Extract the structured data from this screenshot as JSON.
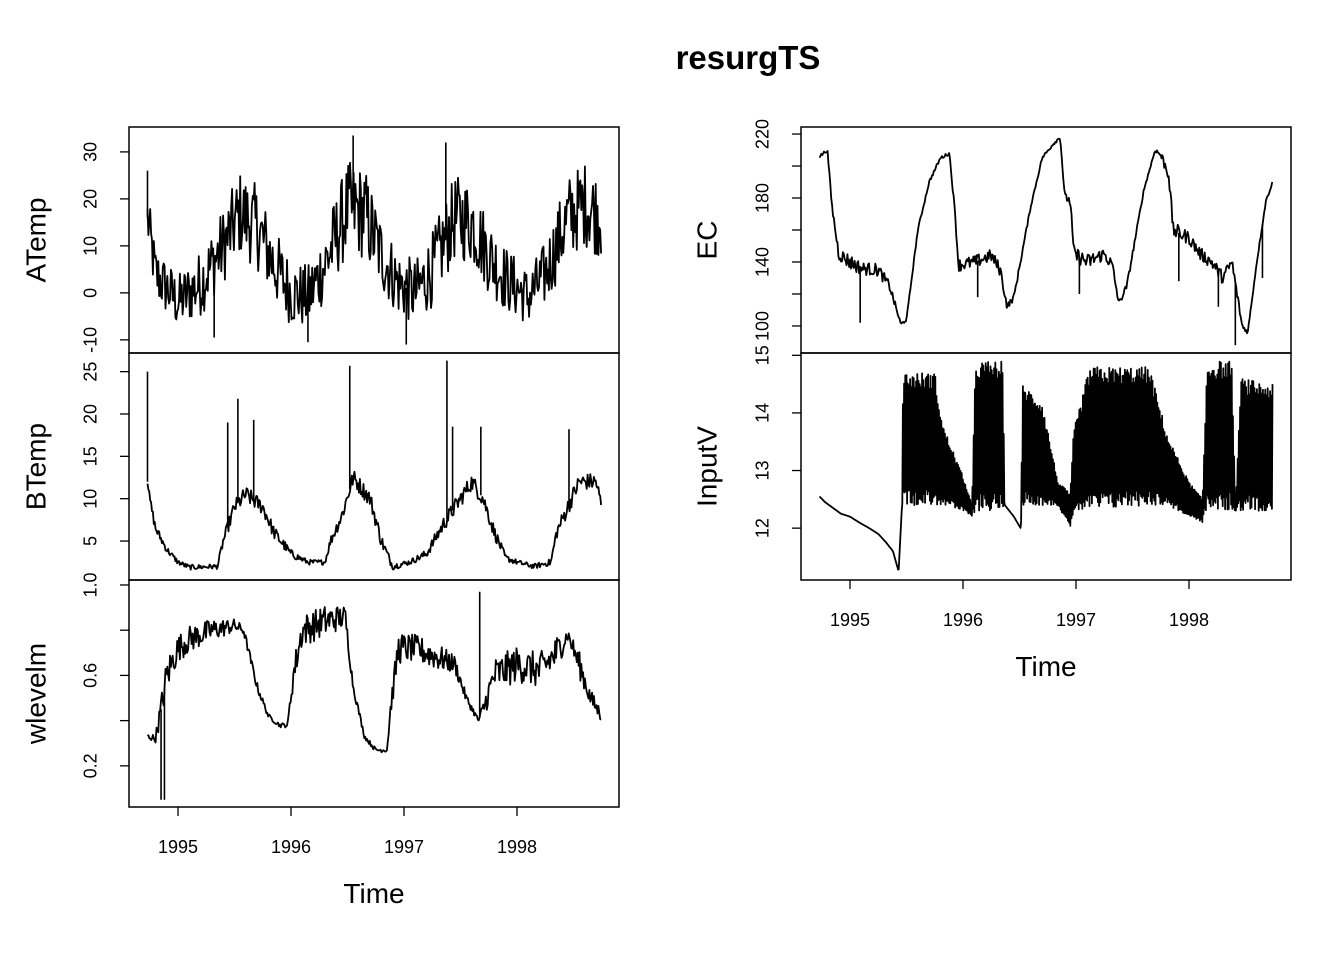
{
  "title": "resurgTS",
  "xaxis": {
    "label": "Time",
    "ticks": [
      1995,
      1996,
      1997,
      1998
    ],
    "xlim": [
      1994.57,
      1998.9
    ]
  },
  "chart_data": [
    {
      "type": "line",
      "ylabel": "ATemp",
      "column": "left",
      "ylim": [
        -12.8,
        35.3
      ],
      "yticks": [
        -10,
        0,
        10,
        20,
        30
      ],
      "ytick_labels": [
        "-10",
        "0",
        "10",
        "20",
        "30"
      ],
      "x": [
        1994.73,
        1994.8,
        1995.0,
        1995.2,
        1995.4,
        1995.55,
        1995.7,
        1995.85,
        1996.0,
        1996.15,
        1996.3,
        1996.5,
        1996.65,
        1996.8,
        1996.95,
        1997.1,
        1997.25,
        1997.45,
        1997.6,
        1997.75,
        1997.9,
        1998.1,
        1998.25,
        1998.45,
        1998.6,
        1998.75
      ],
      "values": [
        16,
        4,
        -2,
        2,
        10,
        17,
        14,
        6,
        0,
        -1,
        6,
        18,
        17,
        8,
        2,
        0,
        5,
        16,
        15,
        8,
        3,
        -1,
        4,
        16,
        19,
        16
      ],
      "noise": [
        6,
        6,
        6,
        7,
        8,
        9,
        9,
        8,
        7,
        7,
        8,
        10,
        10,
        8,
        7,
        7,
        8,
        9,
        9,
        8,
        7,
        6,
        7,
        9,
        9,
        9
      ],
      "spikes": [
        [
          1994.73,
          26
        ],
        [
          1995.32,
          -9.5
        ],
        [
          1996.15,
          -10.5
        ],
        [
          1997.02,
          -11
        ],
        [
          1996.55,
          33.5
        ],
        [
          1997.37,
          32
        ]
      ]
    },
    {
      "type": "line",
      "ylabel": "BTemp",
      "column": "left",
      "ylim": [
        0.4,
        27.2
      ],
      "yticks": [
        5,
        10,
        15,
        20,
        25
      ],
      "ytick_labels": [
        "5",
        "10",
        "15",
        "20",
        "25"
      ],
      "x": [
        1994.73,
        1994.75,
        1994.8,
        1994.9,
        1995.0,
        1995.1,
        1995.35,
        1995.4,
        1995.5,
        1995.6,
        1995.75,
        1995.85,
        1996.0,
        1996.15,
        1996.3,
        1996.35,
        1996.45,
        1996.55,
        1996.7,
        1996.8,
        1996.9,
        1997.05,
        1997.2,
        1997.35,
        1997.5,
        1997.6,
        1997.7,
        1997.8,
        1997.9,
        1998.0,
        1998.15,
        1998.3,
        1998.35,
        1998.45,
        1998.55,
        1998.7,
        1998.75
      ],
      "values": [
        12,
        10,
        6.5,
        4,
        2.5,
        1.9,
        2,
        5,
        9,
        10.5,
        9,
        6,
        3.5,
        2.5,
        2.5,
        5,
        8,
        12.5,
        10,
        5,
        2,
        2.5,
        3.5,
        7,
        10,
        12,
        10,
        6,
        3,
        2.5,
        2,
        2.5,
        6,
        9,
        12,
        12,
        9
      ],
      "noise": [
        0.3,
        0.5,
        0.6,
        0.4,
        0.3,
        0.3,
        0.3,
        0.6,
        0.9,
        1,
        0.9,
        0.8,
        0.5,
        0.3,
        0.3,
        0.6,
        0.9,
        1,
        1,
        0.8,
        0.4,
        0.3,
        0.5,
        0.9,
        1,
        1,
        1,
        0.8,
        0.4,
        0.3,
        0.3,
        0.4,
        0.8,
        1,
        1,
        1,
        0.8
      ],
      "spikes": [
        [
          1994.73,
          25
        ],
        [
          1995.44,
          19
        ],
        [
          1995.53,
          21.8
        ],
        [
          1995.67,
          19.3
        ],
        [
          1996.52,
          25.7
        ],
        [
          1997.38,
          26.3
        ],
        [
          1997.43,
          18.5
        ],
        [
          1997.68,
          18.5
        ],
        [
          1998.46,
          18.2
        ]
      ]
    },
    {
      "type": "line",
      "ylabel": "wlevelm",
      "column": "left",
      "ylim": [
        0.018,
        1.022
      ],
      "yticks": [
        0.2,
        0.4,
        0.6,
        0.8,
        1.0
      ],
      "ytick_labels": [
        "0.2",
        "",
        "0.6",
        "",
        "1.0"
      ],
      "x": [
        1994.73,
        1994.8,
        1994.85,
        1994.9,
        1995.0,
        1995.1,
        1995.3,
        1995.5,
        1995.58,
        1995.7,
        1995.8,
        1995.9,
        1995.97,
        1996.02,
        1996.1,
        1996.3,
        1996.48,
        1996.55,
        1996.65,
        1996.75,
        1996.85,
        1996.88,
        1996.95,
        1997.1,
        1997.3,
        1997.45,
        1997.55,
        1997.66,
        1997.7,
        1997.8,
        1998.0,
        1998.2,
        1998.35,
        1998.45,
        1998.55,
        1998.65,
        1998.75
      ],
      "values": [
        0.33,
        0.32,
        0.45,
        0.6,
        0.72,
        0.76,
        0.8,
        0.82,
        0.8,
        0.55,
        0.42,
        0.38,
        0.38,
        0.6,
        0.8,
        0.84,
        0.86,
        0.55,
        0.33,
        0.27,
        0.27,
        0.45,
        0.72,
        0.72,
        0.68,
        0.65,
        0.5,
        0.4,
        0.45,
        0.6,
        0.65,
        0.62,
        0.7,
        0.78,
        0.65,
        0.5,
        0.42
      ],
      "noise": [
        0.01,
        0.02,
        0.06,
        0.08,
        0.06,
        0.06,
        0.05,
        0.03,
        0.02,
        0.02,
        0.01,
        0.01,
        0.01,
        0.06,
        0.07,
        0.07,
        0.05,
        0.02,
        0.01,
        0.01,
        0.01,
        0.04,
        0.07,
        0.06,
        0.06,
        0.04,
        0.02,
        0.01,
        0.04,
        0.08,
        0.08,
        0.08,
        0.08,
        0.03,
        0.06,
        0.04,
        0.03
      ],
      "spikes": [
        [
          1994.85,
          0.05
        ],
        [
          1994.88,
          0.05
        ],
        [
          1997.67,
          0.97
        ]
      ]
    },
    {
      "type": "line",
      "ylabel": "EC",
      "column": "right",
      "ylim": [
        83.1,
        224.4
      ],
      "yticks": [
        100,
        120,
        140,
        160,
        180,
        200,
        220
      ],
      "ytick_labels": [
        "100",
        "",
        "140",
        "",
        "180",
        "",
        "220"
      ],
      "x": [
        1994.73,
        1994.8,
        1994.84,
        1994.9,
        1995.0,
        1995.1,
        1995.25,
        1995.35,
        1995.45,
        1995.5,
        1995.6,
        1995.7,
        1995.8,
        1995.88,
        1995.93,
        1995.96,
        1996.1,
        1996.25,
        1996.33,
        1996.39,
        1996.45,
        1996.6,
        1996.7,
        1996.8,
        1996.86,
        1996.9,
        1996.95,
        1996.98,
        1997.1,
        1997.25,
        1997.32,
        1997.38,
        1997.45,
        1997.6,
        1997.7,
        1997.75,
        1997.82,
        1997.86,
        1998.0,
        1998.1,
        1998.2,
        1998.3,
        1998.38,
        1998.47,
        1998.52,
        1998.6,
        1998.68,
        1998.74
      ],
      "values": [
        206,
        210,
        175,
        145,
        140,
        136,
        135,
        125,
        101,
        104,
        160,
        190,
        205,
        208,
        170,
        138,
        140,
        144,
        135,
        112,
        118,
        175,
        205,
        214,
        218,
        181,
        178,
        145,
        140,
        145,
        138,
        114,
        125,
        185,
        210,
        207,
        195,
        160,
        155,
        145,
        140,
        130,
        140,
        100,
        96,
        140,
        178,
        190
      ],
      "noise": [
        1,
        1,
        2,
        4,
        5,
        4,
        4,
        3,
        1,
        1,
        1,
        1,
        1,
        1,
        2,
        4,
        4,
        4,
        4,
        2,
        2,
        1,
        1,
        1,
        1,
        2,
        3,
        5,
        5,
        4,
        4,
        2,
        2,
        1,
        1,
        3,
        4,
        5,
        4,
        4,
        4,
        4,
        4,
        2,
        1,
        1,
        1,
        1
      ],
      "spikes": [
        [
          1995.09,
          102
        ],
        [
          1996.13,
          118
        ],
        [
          1997.03,
          120
        ],
        [
          1997.91,
          128
        ],
        [
          1998.26,
          112
        ],
        [
          1998.41,
          88
        ],
        [
          1998.65,
          130
        ]
      ]
    },
    {
      "type": "line",
      "ylabel": "InputV",
      "column": "right",
      "ylim": [
        11.1,
        15.04
      ],
      "yticks": [
        12,
        13,
        14,
        15
      ],
      "ytick_labels": [
        "12",
        "13",
        "14",
        "15"
      ],
      "x": [
        1994.73,
        1994.78,
        1994.85,
        1994.92,
        1995.0,
        1995.08,
        1995.17,
        1995.25,
        1995.32,
        1995.38,
        1995.43,
        1995.46,
        1995.47,
        1995.75,
        1995.82,
        1996.0,
        1996.08,
        1996.11,
        1996.35,
        1996.37,
        1996.45,
        1996.51,
        1996.53,
        1996.7,
        1996.84,
        1996.95,
        1996.98,
        1997.12,
        1997.65,
        1997.81,
        1998.0,
        1998.12,
        1998.16,
        1998.38,
        1998.41,
        1998.46,
        1998.74
      ],
      "values": [
        12.55,
        12.45,
        12.35,
        12.25,
        12.2,
        12.1,
        12.0,
        11.9,
        11.75,
        11.6,
        11.25,
        12.4,
        13.55,
        13.55,
        13.1,
        12.6,
        12.3,
        13.6,
        13.6,
        12.4,
        12.2,
        12.0,
        13.45,
        13.3,
        12.6,
        12.3,
        13.0,
        13.55,
        13.6,
        13.0,
        12.5,
        12.3,
        13.6,
        13.6,
        12.3,
        13.45,
        13.4
      ],
      "noise": [
        0,
        0,
        0,
        0,
        0,
        0,
        0,
        0,
        0,
        0,
        0,
        0,
        1.15,
        1.15,
        0.7,
        0.3,
        0.1,
        1.3,
        1.3,
        0,
        0,
        0,
        1.05,
        0.9,
        0.2,
        0.3,
        0.7,
        1.25,
        1.2,
        0.6,
        0.3,
        0.2,
        1.3,
        1.3,
        0,
        1.15,
        1.1
      ],
      "spikes": []
    }
  ]
}
